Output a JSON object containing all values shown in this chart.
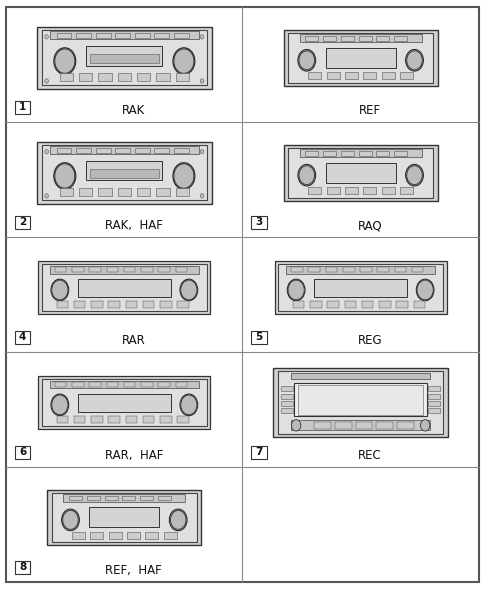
{
  "grid_rows": 5,
  "grid_cols": 2,
  "cells": [
    {
      "row": 0,
      "col": 0,
      "number": "1",
      "label": "RAK",
      "type": "standard"
    },
    {
      "row": 0,
      "col": 1,
      "number": null,
      "label": "REF",
      "type": "standard_slim"
    },
    {
      "row": 1,
      "col": 0,
      "number": "2",
      "label": "RAK,  HAF",
      "type": "standard"
    },
    {
      "row": 1,
      "col": 1,
      "number": "3",
      "label": "RAQ",
      "type": "standard_slim2"
    },
    {
      "row": 2,
      "col": 0,
      "number": "4",
      "label": "RAR",
      "type": "standard_mid"
    },
    {
      "row": 2,
      "col": 1,
      "number": "5",
      "label": "REG",
      "type": "standard_mid"
    },
    {
      "row": 3,
      "col": 0,
      "number": "6",
      "label": "RAR,  HAF",
      "type": "standard_mid"
    },
    {
      "row": 3,
      "col": 1,
      "number": "7",
      "label": "REC",
      "type": "nav_screen"
    },
    {
      "row": 4,
      "col": 0,
      "number": "8",
      "label": "REF,  HAF",
      "type": "standard_slim"
    },
    {
      "row": 4,
      "col": 1,
      "number": null,
      "label": "",
      "type": "empty"
    }
  ],
  "bg_color": "#ffffff",
  "grid_color": "#888888",
  "border_color": "#555555",
  "radio_face": "#e0e0e0",
  "radio_edge": "#444444",
  "btn_face": "#cccccc",
  "btn_edge": "#555555",
  "knob_face": "#bbbbbb",
  "knob_edge": "#222222",
  "disp_face": "#d4d4d4",
  "number_box_color": "#ffffff",
  "text_color": "#111111",
  "label_fontsize": 8.5,
  "number_fontsize": 7.5
}
